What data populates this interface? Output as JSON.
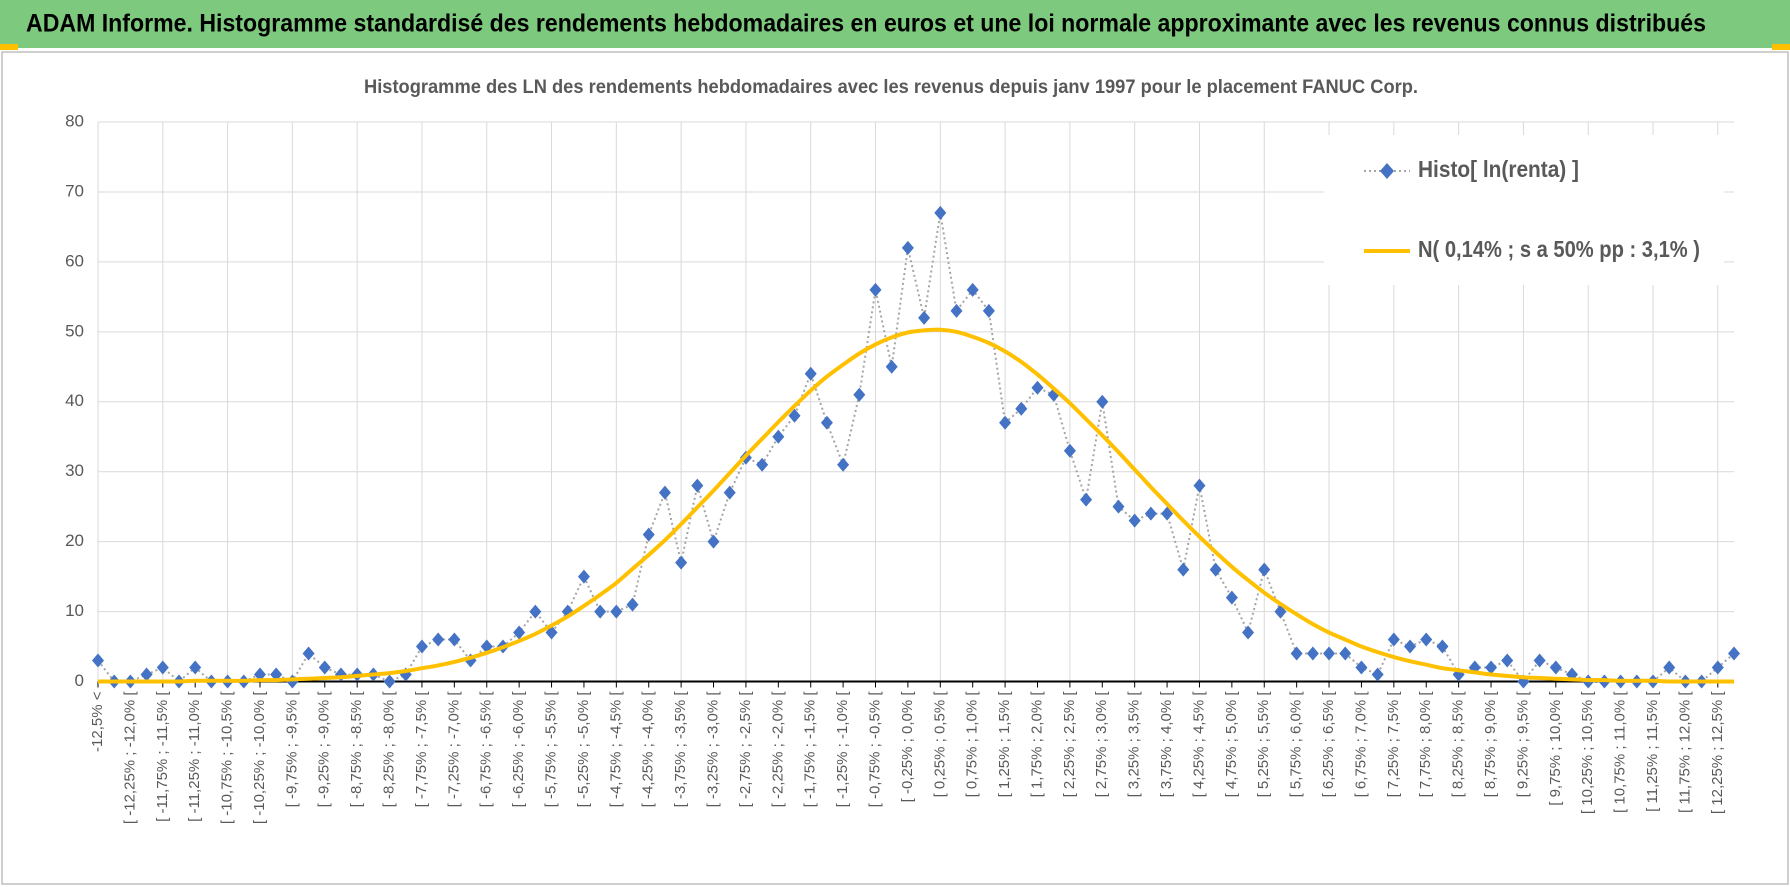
{
  "header": {
    "title": "ADAM Informe. Histogramme standardisé des rendements hebdomadaires en euros et une loi normale approximante avec les revenus connus distribués"
  },
  "chart_data": {
    "type": "line",
    "title": "Histogramme des LN des rendements hebdomadaires avec les revenus depuis janv 1997 pour le placement FANUC Corp.",
    "categories": [
      "-12,5% <",
      null,
      "[ -12,25% ; -12,0% [",
      null,
      "[ -11,75% ; -11,5% [",
      null,
      "[ -11,25% ; -11,0% [",
      null,
      "[ -10,75% ; -10,5% [",
      null,
      "[ -10,25% ; -10,0% [",
      null,
      "[ -9,75% ; -9,5% [",
      null,
      "[ -9,25% ; -9,0% [",
      null,
      "[ -8,75% ; -8,5% [",
      null,
      "[ -8,25% ; -8,0% [",
      null,
      "[ -7,75% ; -7,5% [",
      null,
      "[ -7,25% ; -7,0% [",
      null,
      "[ -6,75% ; -6,5% [",
      null,
      "[ -6,25% ; -6,0% [",
      null,
      "[ -5,75% ; -5,5% [",
      null,
      "[ -5,25% ; -5,0% [",
      null,
      "[ -4,75% ; -4,5% [",
      null,
      "[ -4,25% ; -4,0% [",
      null,
      "[ -3,75% ; -3,5% [",
      null,
      "[ -3,25% ; -3,0% [",
      null,
      "[ -2,75% ; -2,5% [",
      null,
      "[ -2,25% ; -2,0% [",
      null,
      "[ -1,75% ; -1,5% [",
      null,
      "[ -1,25% ; -1,0% [",
      null,
      "[ -0,75% ; -0,5% [",
      null,
      "[ -0,25% ; 0,0% [",
      null,
      "[ 0,25% ; 0,5% [",
      null,
      "[ 0,75% ; 1,0% [",
      null,
      "[ 1,25% ; 1,5% [",
      null,
      "[ 1,75% ; 2,0% [",
      null,
      "[ 2,25% ; 2,5% [",
      null,
      "[ 2,75% ; 3,0% [",
      null,
      "[ 3,25% ; 3,5% [",
      null,
      "[ 3,75% ; 4,0% [",
      null,
      "[ 4,25% ; 4,5% [",
      null,
      "[ 4,75% ; 5,0% [",
      null,
      "[ 5,25% ; 5,5% [",
      null,
      "[ 5,75% ; 6,0% [",
      null,
      "[ 6,25% ; 6,5% [",
      null,
      "[ 6,75% ; 7,0% [",
      null,
      "[ 7,25% ; 7,5% [",
      null,
      "[ 7,75% ; 8,0% [",
      null,
      "[ 8,25% ; 8,5% [",
      null,
      "[ 8,75% ; 9,0% [",
      null,
      "[ 9,25% ; 9,5% [",
      null,
      "[ 9,75% ; 10,0% [",
      null,
      "[ 10,25% ; 10,5% [",
      null,
      "[ 10,75% ; 11,0% [",
      null,
      "[ 11,25% ; 11,5% [",
      null,
      "[ 11,75% ; 12,0% [",
      null,
      "[ 12,25% ; 12,5% [",
      null
    ],
    "series": [
      {
        "name": "Histo[ ln(renta) ]",
        "color": "#4472c4",
        "line_color": "#a5a5a5",
        "marker": "diamond",
        "values": [
          3,
          0,
          0,
          1,
          2,
          0,
          2,
          0,
          0,
          0,
          1,
          1,
          0,
          4,
          2,
          1,
          1,
          1,
          0,
          1,
          5,
          6,
          6,
          3,
          5,
          5,
          7,
          10,
          7,
          10,
          15,
          10,
          10,
          11,
          21,
          27,
          17,
          28,
          20,
          27,
          32,
          31,
          35,
          38,
          44,
          37,
          31,
          41,
          56,
          45,
          62,
          52,
          67,
          53,
          56,
          53,
          37,
          39,
          42,
          41,
          33,
          26,
          40,
          25,
          23,
          24,
          24,
          16,
          28,
          16,
          12,
          7,
          16,
          10,
          4,
          4,
          4,
          4,
          2,
          1,
          6,
          5,
          6,
          5,
          1,
          2,
          2,
          3,
          0,
          3,
          2,
          1,
          0,
          0,
          0,
          0,
          0,
          2,
          0,
          0,
          2,
          4
        ]
      },
      {
        "name": "N( 0,14% ; s a 50% pp : 3,1% )",
        "color": "#ffc000",
        "marker": "none",
        "values": [
          0,
          0,
          0,
          0,
          0,
          0,
          0.1,
          0.1,
          0.1,
          0.1,
          0.2,
          0.2,
          0.3,
          0.4,
          0.5,
          0.6,
          0.8,
          1.0,
          1.2,
          1.5,
          1.9,
          2.3,
          2.8,
          3.4,
          4.1,
          4.9,
          5.8,
          6.8,
          8.0,
          9.3,
          10.8,
          12.4,
          14.1,
          16.1,
          18.1,
          20.2,
          22.5,
          24.9,
          27.3,
          29.8,
          32.3,
          34.7,
          37.1,
          39.4,
          41.6,
          43.6,
          45.3,
          46.9,
          48.2,
          49.2,
          49.9,
          50.2,
          50.3,
          50.0,
          49.3,
          48.4,
          47.2,
          45.7,
          43.9,
          41.9,
          39.8,
          37.5,
          35.2,
          32.8,
          30.3,
          27.8,
          25.4,
          23.0,
          20.7,
          18.5,
          16.4,
          14.5,
          12.7,
          11.1,
          9.6,
          8.2,
          7.0,
          6.0,
          5.0,
          4.2,
          3.5,
          2.9,
          2.4,
          1.9,
          1.6,
          1.3,
          1.0,
          0.8,
          0.6,
          0.5,
          0.4,
          0.3,
          0.2,
          0.2,
          0.1,
          0.1,
          0.1,
          0,
          0,
          0,
          0,
          0
        ]
      }
    ],
    "ylim": [
      0,
      80
    ],
    "yticks": [
      0,
      10,
      20,
      30,
      40,
      50,
      60,
      70,
      80
    ],
    "grid": true,
    "legend": "top-right"
  }
}
